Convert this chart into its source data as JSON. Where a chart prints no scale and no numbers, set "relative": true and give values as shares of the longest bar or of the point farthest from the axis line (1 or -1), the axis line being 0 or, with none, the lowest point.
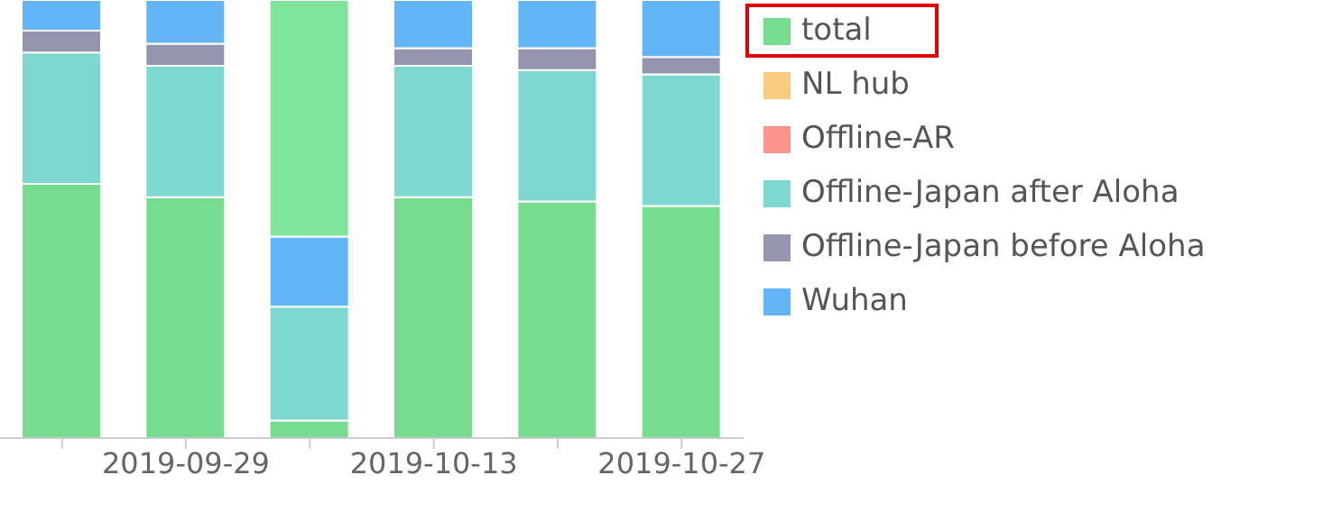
{
  "chart_data": {
    "type": "bar",
    "stacked": true,
    "relative": true,
    "legend": "right",
    "categories": [
      null,
      "2019-09-29",
      null,
      "2019-10-13",
      null,
      "2019-10-27"
    ],
    "series": [
      {
        "name": "total",
        "color": "#77dd8e",
        "values": [
          0.58,
          0.55,
          0.04,
          0.55,
          0.54,
          0.53
        ]
      },
      {
        "name": "NL hub",
        "color": "#f8cc80",
        "values": [
          null,
          null,
          null,
          null,
          null,
          null
        ]
      },
      {
        "name": "Offline-AR",
        "color": "#f8948a",
        "values": [
          null,
          null,
          null,
          null,
          null,
          null
        ]
      },
      {
        "name": "Offline-Japan after Aloha",
        "color": "#7dd8d0",
        "values": [
          0.3,
          0.3,
          0.26,
          0.3,
          0.3,
          0.3
        ]
      },
      {
        "name": "Offline-Japan before Aloha",
        "color": "#9395ae",
        "values": [
          0.05,
          0.05,
          null,
          0.04,
          0.05,
          0.04
        ]
      },
      {
        "name": "Wuhan",
        "color": "#64b5f6",
        "values": [
          0.07,
          0.1,
          0.16,
          0.11,
          0.11,
          0.13
        ]
      },
      {
        "color": "#80e59a",
        "values": [
          null,
          null,
          0.54,
          null,
          null,
          null
        ]
      }
    ]
  }
}
